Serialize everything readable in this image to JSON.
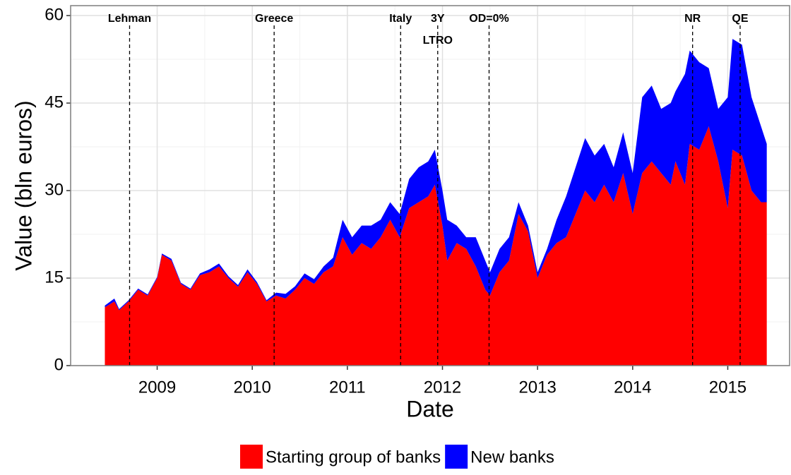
{
  "chart_data": {
    "type": "stacked-area",
    "x_label": "Date",
    "y_label": "Value (bln euros)",
    "x": [
      2008.45,
      2008.55,
      2008.6,
      2008.7,
      2008.8,
      2008.9,
      2009.0,
      2009.05,
      2009.15,
      2009.25,
      2009.35,
      2009.45,
      2009.55,
      2009.65,
      2009.75,
      2009.85,
      2009.95,
      2010.05,
      2010.15,
      2010.25,
      2010.35,
      2010.45,
      2010.55,
      2010.65,
      2010.75,
      2010.85,
      2010.95,
      2011.05,
      2011.15,
      2011.25,
      2011.35,
      2011.45,
      2011.55,
      2011.65,
      2011.75,
      2011.85,
      2011.92,
      2012.0,
      2012.05,
      2012.15,
      2012.25,
      2012.35,
      2012.45,
      2012.5,
      2012.6,
      2012.7,
      2012.8,
      2012.9,
      2013.0,
      2013.1,
      2013.2,
      2013.3,
      2013.4,
      2013.5,
      2013.6,
      2013.7,
      2013.8,
      2013.9,
      2014.0,
      2014.1,
      2014.2,
      2014.3,
      2014.4,
      2014.45,
      2014.55,
      2014.6,
      2014.7,
      2014.8,
      2014.9,
      2015.0,
      2015.05,
      2015.15,
      2015.25,
      2015.35,
      2015.41
    ],
    "series": [
      {
        "name": "Starting group of banks",
        "color": "#ff0000",
        "values": [
          10,
          11,
          9.5,
          11,
          13,
          12,
          15,
          19,
          18,
          14,
          13,
          15.5,
          16,
          17,
          15,
          13.5,
          16,
          14,
          11,
          12,
          11.5,
          13,
          15,
          14,
          16,
          17,
          22,
          19,
          21,
          20,
          22,
          25,
          22,
          27,
          28,
          29,
          31,
          24,
          18,
          21,
          20,
          17,
          13,
          12,
          16,
          18,
          26,
          23,
          15,
          19,
          21,
          22,
          26,
          30,
          28,
          31,
          28,
          33,
          26,
          33,
          35,
          33,
          31,
          35,
          31,
          38,
          37,
          41,
          35,
          27,
          37,
          36,
          30,
          28,
          28
        ]
      },
      {
        "name": "New banks",
        "color": "#0000ff",
        "values": [
          0.3,
          0.5,
          0.2,
          0.2,
          0.2,
          0.2,
          0.2,
          0.2,
          0.3,
          0.2,
          0.2,
          0.3,
          0.5,
          0.5,
          0.3,
          0.3,
          0.5,
          0.3,
          0.2,
          0.5,
          0.8,
          0.6,
          0.8,
          0.8,
          1,
          1.5,
          3,
          3,
          3,
          4,
          3,
          3,
          4,
          5,
          6,
          6,
          6,
          6,
          7,
          3,
          2,
          5,
          5,
          4,
          4,
          4,
          2,
          1,
          1,
          1,
          4,
          7,
          8,
          9,
          8,
          7,
          6,
          7,
          7,
          13,
          13,
          11,
          14,
          12,
          19,
          16,
          15,
          10,
          9,
          19,
          19,
          19,
          16,
          13,
          10
        ]
      }
    ],
    "xlim": [
      2008.09,
      2015.65
    ],
    "xticks": [
      2009,
      2010,
      2011,
      2012,
      2013,
      2014,
      2015
    ],
    "ylim": [
      0,
      61.7
    ],
    "yticks": [
      0,
      15,
      30,
      45,
      60
    ],
    "grid": true,
    "legend": "bottom",
    "annotations": [
      {
        "x": 2008.71,
        "label": "Lehman"
      },
      {
        "x": 2010.23,
        "label": "Greece"
      },
      {
        "x": 2011.56,
        "label": "Italy"
      },
      {
        "x": 2011.95,
        "label": "3Y",
        "sublabel": "LTRO"
      },
      {
        "x": 2012.49,
        "label": "OD=0%"
      },
      {
        "x": 2014.63,
        "label": "NR"
      },
      {
        "x": 2015.13,
        "label": "QE"
      }
    ]
  }
}
